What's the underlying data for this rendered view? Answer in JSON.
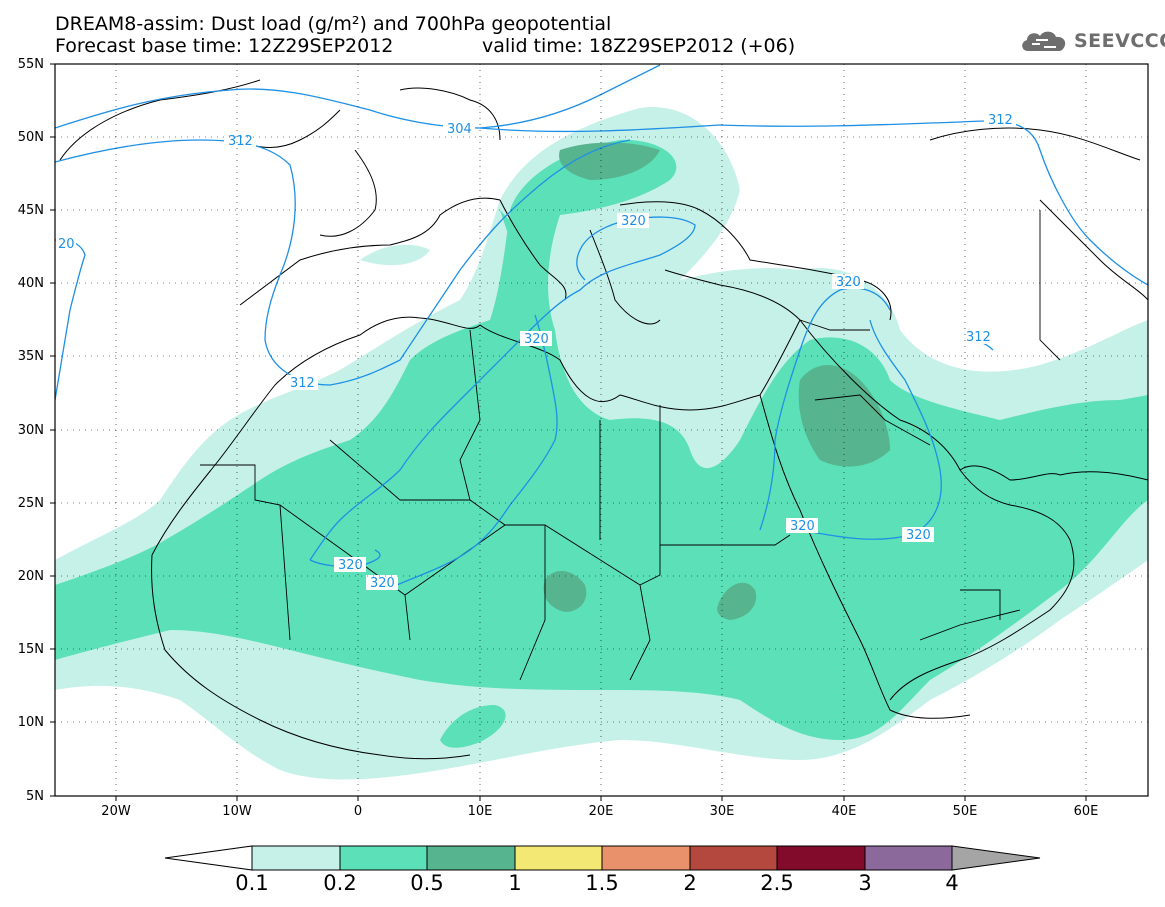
{
  "header": {
    "title_line1": "DREAM8-assim: Dust load (g/m²) and 700hPa geopotential",
    "title_line2a": "Forecast base time: 12Z29SEP2012",
    "title_line2b": "valid time: 18Z29SEP2012 (+06)"
  },
  "logo": {
    "text": "SEEVCCC",
    "icon": "cloud-icon"
  },
  "axes": {
    "lat_labels": [
      "55N",
      "50N",
      "45N",
      "40N",
      "35N",
      "30N",
      "25N",
      "20N",
      "15N",
      "10N",
      "5N"
    ],
    "lon_labels": [
      "20W",
      "10W",
      "0",
      "10E",
      "20E",
      "30E",
      "40E",
      "50E",
      "60E"
    ]
  },
  "contours": {
    "labels": [
      "312",
      "304",
      "312",
      "20",
      "312",
      "320",
      "320",
      "320",
      "320",
      "320",
      "320",
      "320",
      "312"
    ]
  },
  "colorbar": {
    "ticks": [
      "0.1",
      "0.2",
      "0.5",
      "1",
      "1.5",
      "2",
      "2.5",
      "3",
      "4"
    ],
    "colors": [
      "#c6f1e8",
      "#5ce0b8",
      "#56b48f",
      "#f4e874",
      "#e8916a",
      "#b5483e",
      "#820a2a",
      "#8b6a9b"
    ],
    "under_color": "#ffffff",
    "over_color": "#a5a5a5"
  },
  "colors": {
    "dust_light": "#c6f1e8",
    "dust_mid": "#5ce0b8",
    "dust_dark": "#56b48f",
    "contour": "#1e90e6",
    "coast": "#000000"
  }
}
